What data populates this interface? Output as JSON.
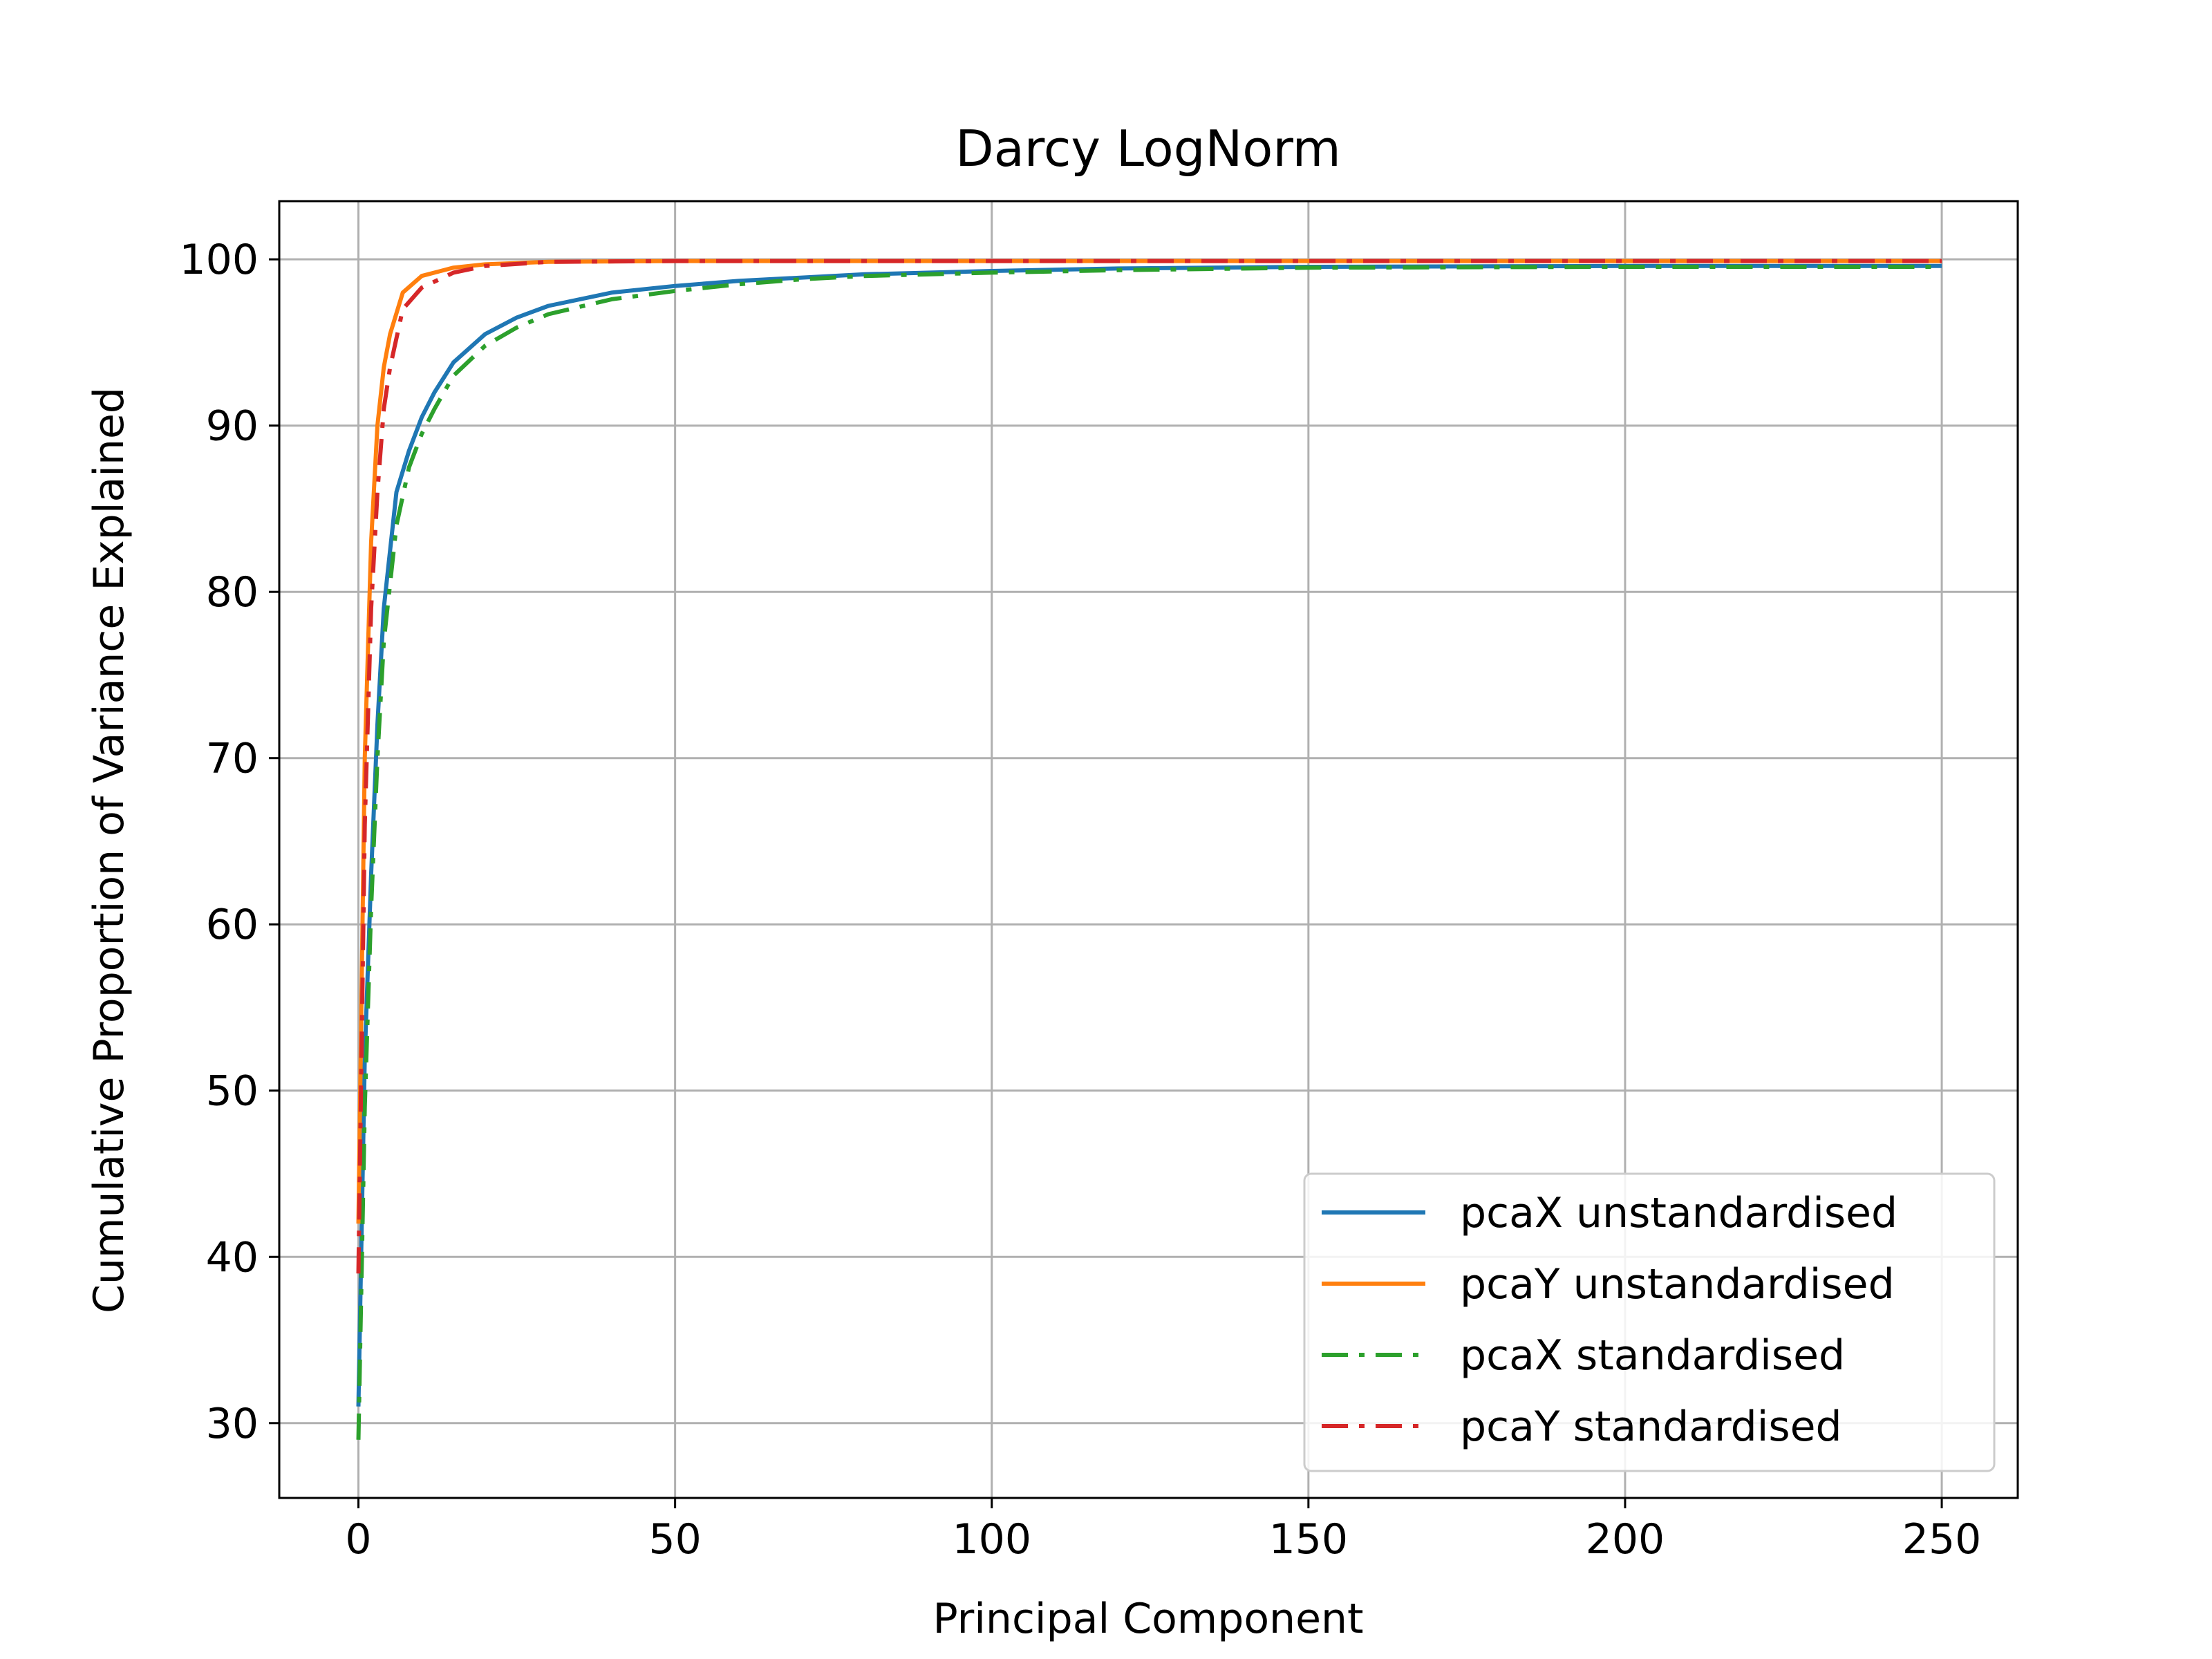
{
  "chart_data": {
    "type": "line",
    "title": "Darcy LogNorm",
    "xlabel": "Principal Component",
    "ylabel": "Cumulative Proportion of Variance Explained",
    "xlim": [
      -12.5,
      262
    ],
    "ylim": [
      25.5,
      103.5
    ],
    "xticks": [
      0,
      50,
      100,
      150,
      200,
      250
    ],
    "yticks": [
      30,
      40,
      50,
      60,
      70,
      80,
      90,
      100
    ],
    "grid": true,
    "legend_position": "lower-right",
    "series": [
      {
        "name": "pcaX unstandardised",
        "color": "#1f77b4",
        "style": "solid",
        "x": [
          0,
          1,
          2,
          3,
          4,
          6,
          8,
          10,
          12,
          15,
          20,
          25,
          30,
          40,
          50,
          60,
          70,
          80,
          100,
          120,
          150,
          200,
          250
        ],
        "y": [
          31,
          52,
          63,
          72,
          79,
          86,
          88.5,
          90.5,
          92,
          93.8,
          95.5,
          96.5,
          97.2,
          98,
          98.4,
          98.7,
          98.9,
          99.1,
          99.3,
          99.45,
          99.55,
          99.6,
          99.6
        ]
      },
      {
        "name": "pcaY unstandardised",
        "color": "#ff7f0e",
        "style": "solid",
        "x": [
          0,
          1,
          2,
          3,
          4,
          5,
          7,
          10,
          15,
          20,
          30,
          50,
          100,
          150,
          200,
          250
        ],
        "y": [
          42,
          70,
          83,
          90,
          93.5,
          95.5,
          98,
          99,
          99.5,
          99.7,
          99.85,
          99.9,
          99.9,
          99.9,
          99.9,
          99.9
        ]
      },
      {
        "name": "pcaX standardised",
        "color": "#2ca02c",
        "style": "dashdot",
        "x": [
          0,
          1,
          2,
          3,
          4,
          6,
          8,
          10,
          12,
          15,
          20,
          25,
          30,
          40,
          50,
          60,
          70,
          80,
          100,
          120,
          150,
          200,
          250
        ],
        "y": [
          29,
          49,
          61,
          70,
          77,
          84,
          87.5,
          89.5,
          91,
          93,
          94.8,
          95.9,
          96.7,
          97.6,
          98.1,
          98.5,
          98.8,
          99,
          99.2,
          99.35,
          99.5,
          99.55,
          99.55
        ]
      },
      {
        "name": "pcaY standardised",
        "color": "#d62728",
        "style": "dashdot",
        "x": [
          0,
          1,
          2,
          3,
          4,
          5,
          7,
          10,
          15,
          20,
          30,
          50,
          100,
          150,
          200,
          250
        ],
        "y": [
          39,
          66,
          79,
          86,
          91,
          93.5,
          97,
          98.3,
          99.2,
          99.6,
          99.85,
          99.9,
          99.9,
          99.9,
          99.9,
          99.9
        ]
      }
    ]
  }
}
